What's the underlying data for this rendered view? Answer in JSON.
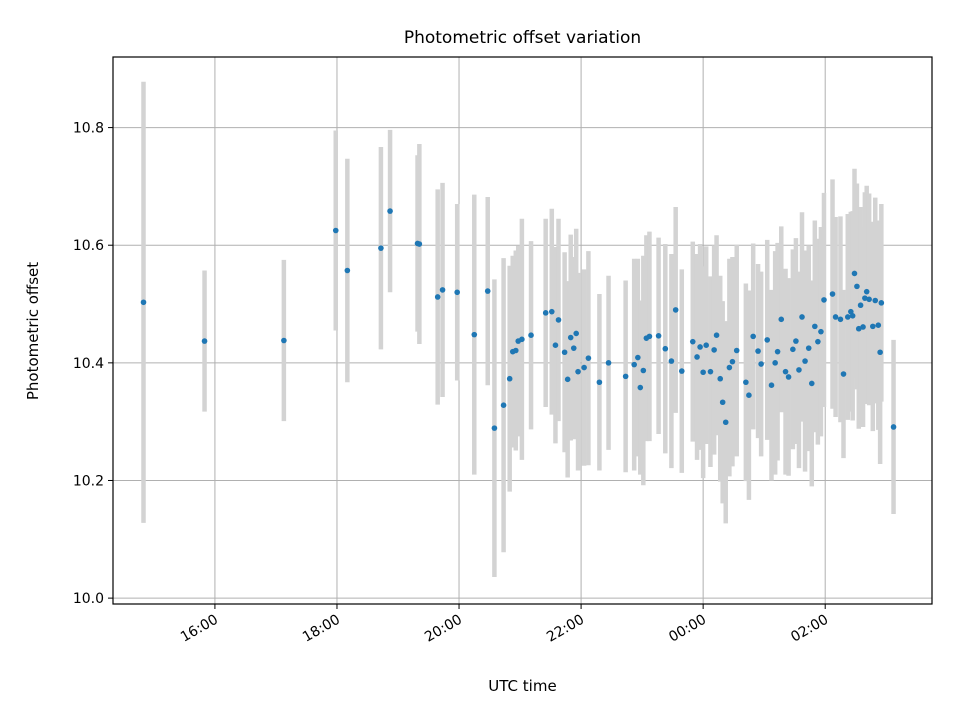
{
  "chart_data": {
    "type": "scatter",
    "title": "Photometric offset variation",
    "xlabel": "UTC time",
    "ylabel": "Photometric offset",
    "x_unit": "hours",
    "xlim": [
      14.33,
      27.75
    ],
    "ylim": [
      9.99,
      10.92
    ],
    "x_ticks": [
      16,
      18,
      20,
      22,
      24,
      26
    ],
    "x_tick_labels": [
      "16:00",
      "18:00",
      "20:00",
      "22:00",
      "00:00",
      "02:00"
    ],
    "y_ticks": [
      10.0,
      10.2,
      10.4,
      10.6,
      10.8
    ],
    "y_tick_labels": [
      "10.0",
      "10.2",
      "10.4",
      "10.6",
      "10.8"
    ],
    "grid": true,
    "marker_color": "#1f77b4",
    "errorbar_color": "#d3d3d3",
    "series": [
      {
        "points": [
          [
            14.83,
            10.503,
            0.375
          ],
          [
            15.83,
            10.437,
            0.12
          ],
          [
            17.13,
            10.438,
            0.137
          ],
          [
            17.98,
            10.625,
            0.17
          ],
          [
            18.17,
            10.557,
            0.19
          ],
          [
            18.72,
            10.595,
            0.172
          ],
          [
            18.87,
            10.658,
            0.138
          ],
          [
            19.32,
            10.603,
            0.15
          ],
          [
            19.35,
            10.602,
            0.17
          ],
          [
            19.65,
            10.512,
            0.183
          ],
          [
            19.73,
            10.524,
            0.182
          ],
          [
            19.97,
            10.52,
            0.15
          ],
          [
            20.25,
            10.448,
            0.238
          ],
          [
            20.47,
            10.522,
            0.16
          ],
          [
            20.58,
            10.289,
            0.253
          ],
          [
            20.73,
            10.328,
            0.25
          ],
          [
            20.83,
            10.373,
            0.192
          ],
          [
            20.88,
            10.419,
            0.163
          ],
          [
            20.93,
            10.421,
            0.17
          ],
          [
            20.97,
            10.437,
            0.162
          ],
          [
            21.03,
            10.44,
            0.205
          ],
          [
            21.18,
            10.447,
            0.16
          ],
          [
            21.42,
            10.485,
            0.16
          ],
          [
            21.52,
            10.487,
            0.175
          ],
          [
            21.58,
            10.43,
            0.167
          ],
          [
            21.63,
            10.473,
            0.172
          ],
          [
            21.73,
            10.418,
            0.17
          ],
          [
            21.78,
            10.372,
            0.167
          ],
          [
            21.83,
            10.443,
            0.175
          ],
          [
            21.88,
            10.425,
            0.155
          ],
          [
            21.92,
            10.45,
            0.178
          ],
          [
            21.95,
            10.385,
            0.168
          ],
          [
            22.05,
            10.392,
            0.167
          ],
          [
            22.12,
            10.408,
            0.182
          ],
          [
            22.3,
            10.367,
            0.15
          ],
          [
            22.45,
            10.4,
            0.148
          ],
          [
            22.73,
            10.377,
            0.163
          ],
          [
            22.87,
            10.397,
            0.18
          ],
          [
            22.93,
            10.409,
            0.168
          ],
          [
            22.97,
            10.358,
            0.148
          ],
          [
            23.02,
            10.387,
            0.195
          ],
          [
            23.07,
            10.442,
            0.175
          ],
          [
            23.12,
            10.445,
            0.178
          ],
          [
            23.27,
            10.446,
            0.167
          ],
          [
            23.38,
            10.424,
            0.178
          ],
          [
            23.48,
            10.403,
            0.182
          ],
          [
            23.55,
            10.49,
            0.175
          ],
          [
            23.65,
            10.386,
            0.173
          ],
          [
            23.83,
            10.436,
            0.17
          ],
          [
            23.9,
            10.41,
            0.175
          ],
          [
            23.95,
            10.427,
            0.175
          ],
          [
            24.0,
            10.384,
            0.18
          ],
          [
            24.05,
            10.43,
            0.168
          ],
          [
            24.12,
            10.385,
            0.162
          ],
          [
            24.18,
            10.422,
            0.178
          ],
          [
            24.22,
            10.447,
            0.17
          ],
          [
            24.28,
            10.373,
            0.175
          ],
          [
            24.32,
            10.333,
            0.172
          ],
          [
            24.37,
            10.299,
            0.172
          ],
          [
            24.43,
            10.392,
            0.185
          ],
          [
            24.48,
            10.402,
            0.178
          ],
          [
            24.55,
            10.421,
            0.18
          ],
          [
            24.7,
            10.367,
            0.168
          ],
          [
            24.75,
            10.345,
            0.178
          ],
          [
            24.82,
            10.445,
            0.158
          ],
          [
            24.9,
            10.42,
            0.148
          ],
          [
            24.95,
            10.398,
            0.157
          ],
          [
            25.05,
            10.439,
            0.17
          ],
          [
            25.12,
            10.362,
            0.162
          ],
          [
            25.18,
            10.4,
            0.19
          ],
          [
            25.22,
            10.419,
            0.185
          ],
          [
            25.28,
            10.474,
            0.158
          ],
          [
            25.35,
            10.385,
            0.175
          ],
          [
            25.4,
            10.376,
            0.168
          ],
          [
            25.47,
            10.423,
            0.17
          ],
          [
            25.52,
            10.437,
            0.175
          ],
          [
            25.57,
            10.388,
            0.167
          ],
          [
            25.62,
            10.478,
            0.178
          ],
          [
            25.67,
            10.403,
            0.188
          ],
          [
            25.73,
            10.425,
            0.175
          ],
          [
            25.78,
            10.365,
            0.175
          ],
          [
            25.83,
            10.462,
            0.18
          ],
          [
            25.88,
            10.436,
            0.175
          ],
          [
            25.93,
            10.453,
            0.178
          ],
          [
            25.98,
            10.507,
            0.182
          ],
          [
            26.12,
            10.517,
            0.195
          ],
          [
            26.17,
            10.478,
            0.17
          ],
          [
            26.25,
            10.474,
            0.175
          ],
          [
            26.3,
            10.381,
            0.143
          ],
          [
            26.37,
            10.478,
            0.175
          ],
          [
            26.42,
            10.487,
            0.17
          ],
          [
            26.45,
            10.48,
            0.178
          ],
          [
            26.48,
            10.552,
            0.178
          ],
          [
            26.52,
            10.53,
            0.175
          ],
          [
            26.55,
            10.458,
            0.17
          ],
          [
            26.58,
            10.498,
            0.167
          ],
          [
            26.62,
            10.461,
            0.17
          ],
          [
            26.65,
            10.51,
            0.18
          ],
          [
            26.68,
            10.521,
            0.18
          ],
          [
            26.72,
            10.508,
            0.18
          ],
          [
            26.78,
            10.462,
            0.178
          ],
          [
            26.82,
            10.506,
            0.175
          ],
          [
            26.87,
            10.464,
            0.178
          ],
          [
            26.9,
            10.418,
            0.19
          ],
          [
            26.92,
            10.502,
            0.168
          ],
          [
            27.12,
            10.291,
            0.148
          ]
        ]
      }
    ]
  }
}
